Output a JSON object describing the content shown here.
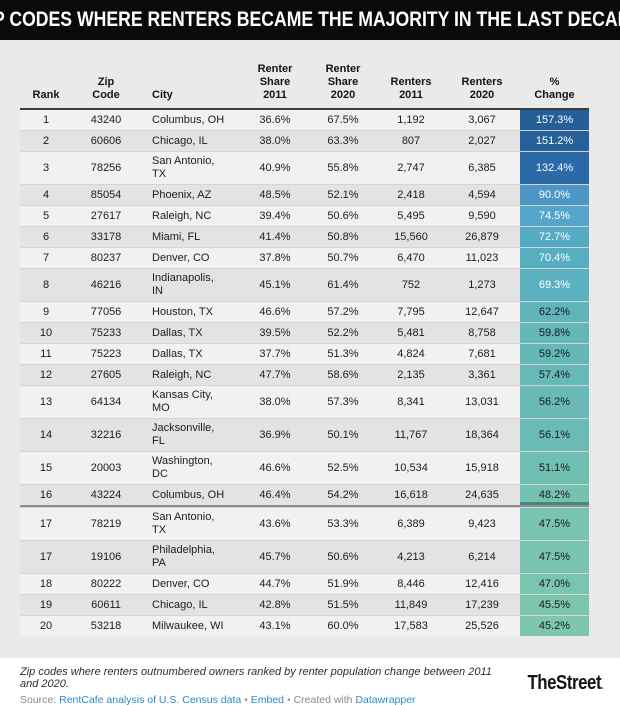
{
  "title": "ZIP CODES WHERE RENTERS BECAME THE MAJORITY IN THE LAST DECADE",
  "chart_data": {
    "type": "table",
    "title": "ZIP CODES WHERE RENTERS BECAME THE MAJORITY IN THE LAST DECADE",
    "heatmap_column": "pct_change",
    "heatmap_colors": {
      "high_value": "#265e98",
      "low_value": "#7ec7ae"
    },
    "columns": [
      {
        "key": "rank",
        "label": "Rank"
      },
      {
        "key": "zip",
        "label": "Zip\nCode"
      },
      {
        "key": "city",
        "label": "City"
      },
      {
        "key": "share_2011",
        "label": "Renter\nShare\n2011"
      },
      {
        "key": "share_2020",
        "label": "Renter\nShare\n2020"
      },
      {
        "key": "renters_2011",
        "label": "Renters\n2011"
      },
      {
        "key": "renters_2020",
        "label": "Renters\n2020"
      },
      {
        "key": "pct_change",
        "label": "%\nChange"
      }
    ],
    "rows": [
      {
        "rank": "1",
        "zip": "43240",
        "city": "Columbus, OH",
        "share_2011": "36.6%",
        "share_2020": "67.5%",
        "renters_2011": "1,192",
        "renters_2020": "3,067",
        "pct_change": "157.3%",
        "cell_color": "#265e98",
        "cell_text": "#ffffff"
      },
      {
        "rank": "2",
        "zip": "60606",
        "city": "Chicago, IL",
        "share_2011": "38.0%",
        "share_2020": "63.3%",
        "renters_2011": "807",
        "renters_2020": "2,027",
        "pct_change": "151.2%",
        "cell_color": "#27619b",
        "cell_text": "#ffffff"
      },
      {
        "rank": "3",
        "zip": "78256",
        "city": "San Antonio,\nTX",
        "share_2011": "40.9%",
        "share_2020": "55.8%",
        "renters_2011": "2,747",
        "renters_2020": "6,385",
        "pct_change": "132.4%",
        "cell_color": "#2b6aa7",
        "cell_text": "#ffffff"
      },
      {
        "rank": "4",
        "zip": "85054",
        "city": "Phoenix, AZ",
        "share_2011": "48.5%",
        "share_2020": "52.1%",
        "renters_2011": "2,418",
        "renters_2020": "4,594",
        "pct_change": "90.0%",
        "cell_color": "#4c97c5",
        "cell_text": "#ffffff"
      },
      {
        "rank": "5",
        "zip": "27617",
        "city": "Raleigh, NC",
        "share_2011": "39.4%",
        "share_2020": "50.6%",
        "renters_2011": "5,495",
        "renters_2020": "9,590",
        "pct_change": "74.5%",
        "cell_color": "#55a4c9",
        "cell_text": "#ffffff"
      },
      {
        "rank": "6",
        "zip": "33178",
        "city": "Miami, FL",
        "share_2011": "41.4%",
        "share_2020": "50.8%",
        "renters_2011": "15,560",
        "renters_2020": "26,879",
        "pct_change": "72.7%",
        "cell_color": "#55abc3",
        "cell_text": "#ffffff"
      },
      {
        "rank": "7",
        "zip": "80237",
        "city": "Denver, CO",
        "share_2011": "37.8%",
        "share_2020": "50.7%",
        "renters_2011": "6,470",
        "renters_2020": "11,023",
        "pct_change": "70.4%",
        "cell_color": "#58aec1",
        "cell_text": "#ffffff"
      },
      {
        "rank": "8",
        "zip": "46216",
        "city": "Indianapolis,\nIN",
        "share_2011": "45.1%",
        "share_2020": "61.4%",
        "renters_2011": "752",
        "renters_2020": "1,273",
        "pct_change": "69.3%",
        "cell_color": "#5bb1bf",
        "cell_text": "#ffffff"
      },
      {
        "rank": "9",
        "zip": "77056",
        "city": "Houston, TX",
        "share_2011": "46.6%",
        "share_2020": "57.2%",
        "renters_2011": "7,795",
        "renters_2020": "12,647",
        "pct_change": "62.2%",
        "cell_color": "#60b5bb",
        "cell_text": "#1a1a1a"
      },
      {
        "rank": "10",
        "zip": "75233",
        "city": "Dallas, TX",
        "share_2011": "39.5%",
        "share_2020": "52.2%",
        "renters_2011": "5,481",
        "renters_2020": "8,758",
        "pct_change": "59.8%",
        "cell_color": "#63b7b9",
        "cell_text": "#1a1a1a"
      },
      {
        "rank": "11",
        "zip": "75223",
        "city": "Dallas, TX",
        "share_2011": "37.7%",
        "share_2020": "51.3%",
        "renters_2011": "4,824",
        "renters_2020": "7,681",
        "pct_change": "59.2%",
        "cell_color": "#65b8b8",
        "cell_text": "#1a1a1a"
      },
      {
        "rank": "12",
        "zip": "27605",
        "city": "Raleigh, NC",
        "share_2011": "47.7%",
        "share_2020": "58.6%",
        "renters_2011": "2,135",
        "renters_2020": "3,361",
        "pct_change": "57.4%",
        "cell_color": "#67b9b7",
        "cell_text": "#1a1a1a"
      },
      {
        "rank": "13",
        "zip": "64134",
        "city": "Kansas City,\nMO",
        "share_2011": "38.0%",
        "share_2020": "57.3%",
        "renters_2011": "8,341",
        "renters_2020": "13,031",
        "pct_change": "56.2%",
        "cell_color": "#69bab6",
        "cell_text": "#1a1a1a"
      },
      {
        "rank": "14",
        "zip": "32216",
        "city": "Jacksonville,\nFL",
        "share_2011": "36.9%",
        "share_2020": "50.1%",
        "renters_2011": "11,767",
        "renters_2020": "18,364",
        "pct_change": "56.1%",
        "cell_color": "#6abbb5",
        "cell_text": "#1a1a1a"
      },
      {
        "rank": "15",
        "zip": "20003",
        "city": "Washington,\nDC",
        "share_2011": "46.6%",
        "share_2020": "52.5%",
        "renters_2011": "10,534",
        "renters_2020": "15,918",
        "pct_change": "51.1%",
        "cell_color": "#70bfb3",
        "cell_text": "#1a1a1a"
      },
      {
        "rank": "16",
        "zip": "43224",
        "city": "Columbus, OH",
        "share_2011": "46.4%",
        "share_2020": "54.2%",
        "renters_2011": "16,618",
        "renters_2020": "24,635",
        "pct_change": "48.2%",
        "cell_color": "#75c2b1",
        "cell_text": "#1a1a1a",
        "divider_below": true
      },
      {
        "rank": "17",
        "zip": "78219",
        "city": "San Antonio,\nTX",
        "share_2011": "43.6%",
        "share_2020": "53.3%",
        "renters_2011": "6,389",
        "renters_2020": "9,423",
        "pct_change": "47.5%",
        "cell_color": "#78c4b0",
        "cell_text": "#1a1a1a"
      },
      {
        "rank": "17",
        "zip": "19106",
        "city": "Philadelphia,\nPA",
        "share_2011": "45.7%",
        "share_2020": "50.6%",
        "renters_2011": "4,213",
        "renters_2020": "6,214",
        "pct_change": "47.5%",
        "cell_color": "#78c4b0",
        "cell_text": "#1a1a1a"
      },
      {
        "rank": "18",
        "zip": "80222",
        "city": "Denver, CO",
        "share_2011": "44.7%",
        "share_2020": "51.9%",
        "renters_2011": "8,446",
        "renters_2020": "12,416",
        "pct_change": "47.0%",
        "cell_color": "#7ac5af",
        "cell_text": "#1a1a1a"
      },
      {
        "rank": "19",
        "zip": "60611",
        "city": "Chicago, IL",
        "share_2011": "42.8%",
        "share_2020": "51.5%",
        "renters_2011": "11,849",
        "renters_2020": "17,239",
        "pct_change": "45.5%",
        "cell_color": "#7dc6ae",
        "cell_text": "#1a1a1a"
      },
      {
        "rank": "20",
        "zip": "53218",
        "city": "Milwaukee, WI",
        "share_2011": "43.1%",
        "share_2020": "60.0%",
        "renters_2011": "17,583",
        "renters_2020": "25,526",
        "pct_change": "45.2%",
        "cell_color": "#7ec7ae",
        "cell_text": "#1a1a1a"
      }
    ]
  },
  "footer": {
    "description": "Zip codes where renters outnumbered owners ranked by renter population change between 2011 and 2020.",
    "source_prefix": "Source:",
    "source_link": "RentCafe analysis of U.S. Census data",
    "dot1": "•",
    "embed_label": "Embed",
    "dot2": "•",
    "created_with": "Created with",
    "datawrapper_label": "Datawrapper",
    "logo_text": "TheStreet",
    "logo_dot": "."
  }
}
